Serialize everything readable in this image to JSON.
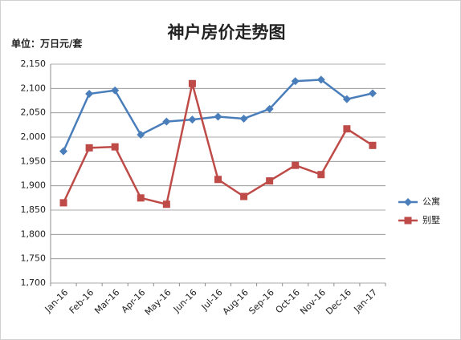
{
  "chart_data": {
    "type": "line",
    "title": "神户房价走势图",
    "y_label": "单位：万日元/套",
    "categories": [
      "Jan-16",
      "Feb-16",
      "Mar-16",
      "Apr-16",
      "May-16",
      "Jun-16",
      "Jul-16",
      "Aug-16",
      "Sep-16",
      "Oct-16",
      "Nov-16",
      "Dec-16",
      "Jan-17"
    ],
    "series": [
      {
        "name": "公寓",
        "color": "#4a7ebb",
        "marker": "diamond",
        "values": [
          1971,
          2089,
          2096,
          2005,
          2032,
          2036,
          2042,
          2038,
          2058,
          2115,
          2118,
          2078,
          2090
        ]
      },
      {
        "name": "别墅",
        "color": "#be4b48",
        "marker": "square",
        "values": [
          1865,
          1978,
          1980,
          1875,
          1862,
          2110,
          1913,
          1878,
          1910,
          1942,
          1923,
          2017,
          1983
        ]
      }
    ],
    "ylim": [
      1700,
      2150
    ],
    "yticks": [
      {
        "value": 1700,
        "label": "1,700"
      },
      {
        "value": 1750,
        "label": "1,750"
      },
      {
        "value": 1800,
        "label": "1,800"
      },
      {
        "value": 1850,
        "label": "1,850"
      },
      {
        "value": 1900,
        "label": "1,900"
      },
      {
        "value": 1950,
        "label": "1,950"
      },
      {
        "value": 2000,
        "label": "2,000"
      },
      {
        "value": 2050,
        "label": "2,050"
      },
      {
        "value": 2100,
        "label": "2,100"
      },
      {
        "value": 2150,
        "label": "2,150"
      }
    ],
    "grid": true,
    "legend": "right"
  }
}
